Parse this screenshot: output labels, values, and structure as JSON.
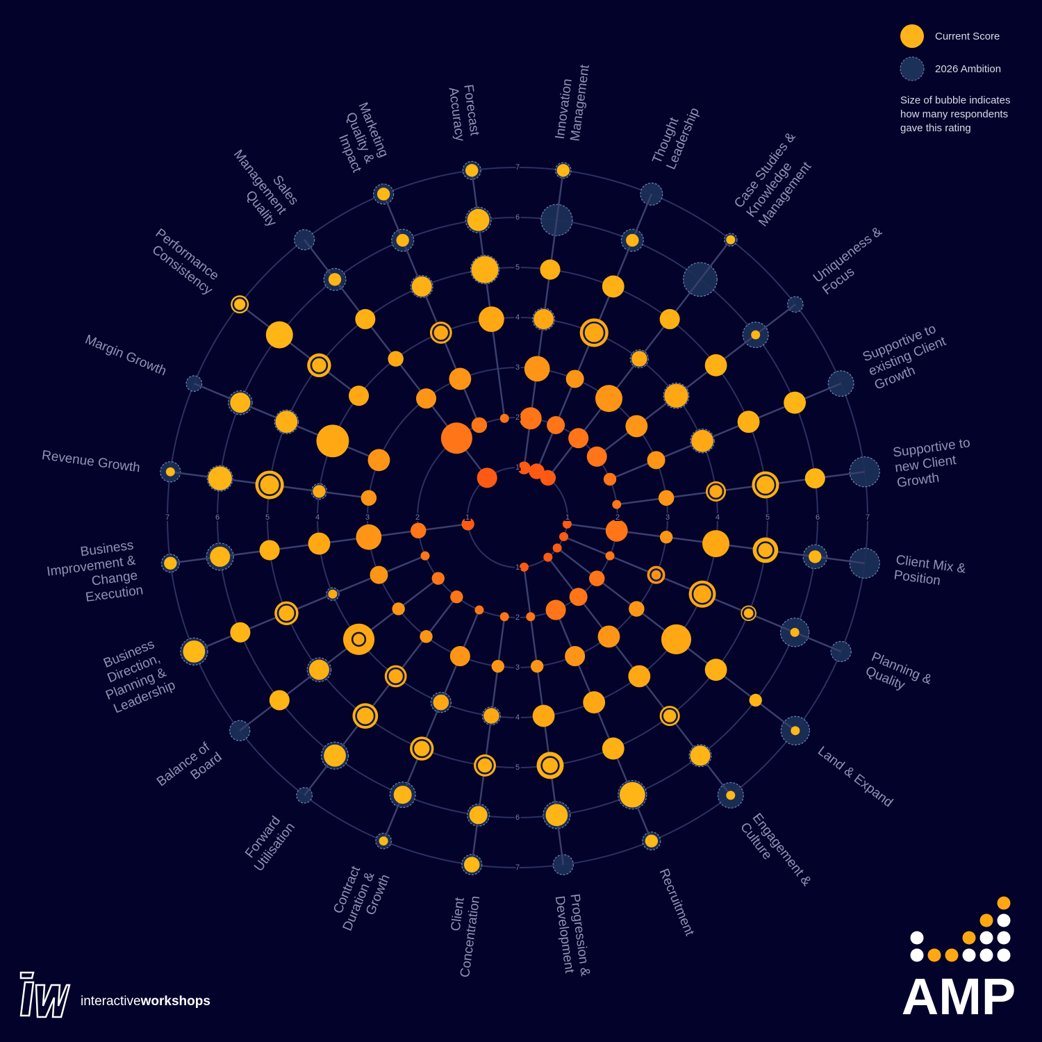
{
  "chart_data": {
    "type": "radial-bubble",
    "categories": [
      "Innovation Management",
      "Thought Leadership",
      "Case Studies & Knowledge Management",
      "Uniqueness & Focus",
      "Supportive to existing Client Growth",
      "Supportive to new Client Growth",
      "Client Mix & Position",
      "Planning & Quality",
      "Land & Expand",
      "Engagement & Culture",
      "Recruitment",
      "Progression & Development",
      "Client Concentration",
      "Contract Duration & Growth",
      "Forward Utilisation",
      "Balance of Board",
      "Business Direction, Planning & Leadership",
      "Business Improvement & Change Execution",
      "Revenue Growth",
      "Margin Growth",
      "Performance Consistency",
      "Sales Management Quality",
      "Marketing Quality & Impact",
      "Forecast Accuracy"
    ],
    "rlim": [
      0,
      7
    ],
    "rticks": [
      1,
      2,
      3,
      4,
      5,
      6,
      7
    ],
    "series": [
      {
        "name": "Current Score",
        "color": "#ffb31a",
        "rating_colors": [
          "#ff5a14",
          "#ff7518",
          "#ff9516",
          "#ffa814",
          "#ffb014",
          "#ffb516",
          "#ffb816"
        ],
        "values": [
          [
            2,
            6,
            8,
            5,
            5,
            null,
            2
          ],
          [
            3,
            4,
            4,
            10,
            6,
            2,
            null
          ],
          [
            3,
            5,
            9,
            3,
            5,
            null,
            1
          ],
          [
            null,
            5,
            6,
            7,
            6,
            1,
            null
          ],
          [
            null,
            2,
            4,
            6,
            6,
            6,
            null
          ],
          [
            null,
            1,
            3,
            5,
            9,
            5,
            null
          ],
          [
            1,
            6,
            2,
            9,
            8,
            2,
            null
          ],
          [
            1,
            1,
            4,
            9,
            3,
            1,
            null
          ],
          [
            1,
            3,
            3,
            11,
            6,
            2,
            1
          ],
          [
            1,
            4,
            6,
            6,
            5,
            5,
            1
          ],
          [
            null,
            5,
            5,
            6,
            6,
            8,
            2
          ],
          [
            1,
            1,
            2,
            6,
            9,
            6,
            null
          ],
          [
            null,
            1,
            2,
            3,
            6,
            4,
            3
          ],
          [
            null,
            1,
            5,
            3,
            7,
            4,
            1
          ],
          [
            null,
            2,
            2,
            6,
            8,
            6,
            null
          ],
          [
            null,
            2,
            2,
            12,
            5,
            5,
            null
          ],
          [
            null,
            1,
            4,
            1,
            7,
            5,
            6
          ],
          [
            2,
            3,
            8,
            6,
            5,
            5,
            2
          ],
          [
            null,
            null,
            3,
            2,
            10,
            7,
            1
          ],
          [
            null,
            null,
            6,
            13,
            6,
            5,
            null
          ],
          [
            null,
            null,
            null,
            5,
            7,
            9,
            4
          ],
          [
            5,
            12,
            5,
            3,
            5,
            2,
            null
          ],
          [
            null,
            3,
            6,
            6,
            5,
            2,
            2
          ],
          [
            null,
            1,
            null,
            8,
            9,
            6,
            2
          ]
        ]
      },
      {
        "name": "2026 Ambition",
        "color": "#1c3158",
        "values": [
          [
            null,
            null,
            null,
            6,
            null,
            12,
            3
          ],
          [
            null,
            null,
            null,
            10,
            null,
            6,
            6
          ],
          [
            null,
            null,
            null,
            4,
            null,
            14,
            2
          ],
          [
            null,
            null,
            null,
            8,
            null,
            8,
            3
          ],
          [
            null,
            null,
            null,
            7,
            null,
            null,
            8
          ],
          [
            null,
            null,
            null,
            5,
            9,
            null,
            11
          ],
          [
            null,
            null,
            null,
            null,
            6,
            7,
            11
          ],
          [
            null,
            null,
            3,
            9,
            3,
            10,
            5
          ],
          [
            null,
            null,
            null,
            null,
            null,
            null,
            10
          ],
          [
            null,
            null,
            null,
            null,
            5,
            6,
            8
          ],
          [
            null,
            null,
            null,
            null,
            null,
            10,
            4
          ],
          [
            null,
            null,
            null,
            null,
            7,
            9,
            5
          ],
          [
            null,
            null,
            null,
            4,
            6,
            6,
            5
          ],
          [
            null,
            null,
            null,
            5,
            7,
            8,
            3
          ],
          [
            null,
            null,
            null,
            6,
            8,
            9,
            3
          ],
          [
            null,
            null,
            null,
            4,
            7,
            null,
            5
          ],
          [
            null,
            null,
            null,
            2,
            7,
            null,
            9
          ],
          [
            null,
            null,
            null,
            null,
            null,
            9,
            4
          ],
          [
            null,
            null,
            null,
            3,
            10,
            8,
            5
          ],
          [
            null,
            null,
            null,
            null,
            7,
            7,
            3
          ],
          [
            null,
            null,
            null,
            null,
            6,
            null,
            4
          ],
          [
            null,
            null,
            null,
            null,
            null,
            6,
            5
          ],
          [
            null,
            null,
            null,
            6,
            6,
            6,
            5
          ],
          [
            null,
            null,
            null,
            null,
            10,
            8,
            4
          ]
        ]
      }
    ],
    "size_note": "Size of bubble indicates how many respondents gave this rating"
  },
  "branding": {
    "company_light": "interactive",
    "company_bold": "workshops",
    "product": "AMP"
  }
}
